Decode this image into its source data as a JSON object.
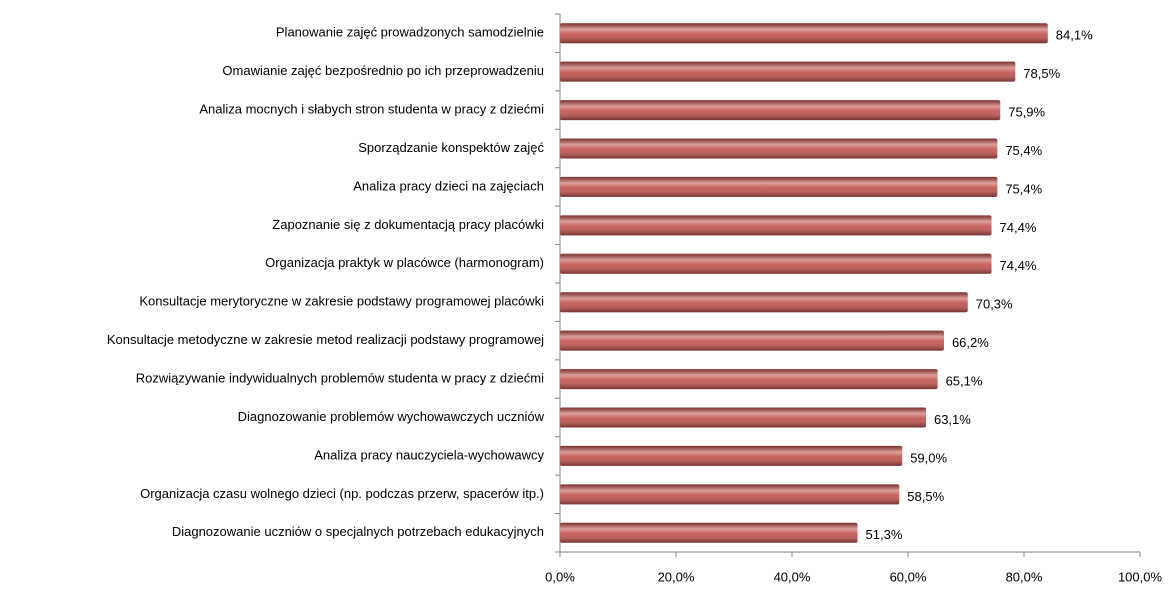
{
  "chart_data": {
    "type": "bar",
    "orientation": "horizontal",
    "categories": [
      "Planowanie zajęć prowadzonych samodzielnie",
      "Omawianie zajęć bezpośrednio po ich przeprowadzeniu",
      "Analiza mocnych i słabych stron studenta w pracy z dziećmi",
      "Sporządzanie konspektów zajęć",
      "Analiza pracy dzieci na zajęciach",
      "Zapoznanie się z dokumentacją pracy placówki",
      "Organizacja praktyk w placówce (harmonogram)",
      "Konsultacje merytoryczne w zakresie podstawy programowej placówki",
      "Konsultacje metodyczne w zakresie metod realizacji podstawy programowej",
      "Rozwiązywanie indywidualnych problemów studenta w pracy z dziećmi",
      "Diagnozowanie problemów wychowawczych uczniów",
      "Analiza pracy nauczyciela-wychowawcy",
      "Organizacja czasu wolnego dzieci (np. podczas przerw, spacerów itp.)",
      "Diagnozowanie uczniów o specjalnych potrzebach edukacyjnych"
    ],
    "values": [
      84.1,
      78.5,
      75.9,
      75.4,
      75.4,
      74.4,
      74.4,
      70.3,
      66.2,
      65.1,
      63.1,
      59.0,
      58.5,
      51.3
    ],
    "value_labels": [
      "84,1%",
      "78,5%",
      "75,9%",
      "75,4%",
      "75,4%",
      "74,4%",
      "74,4%",
      "70,3%",
      "66,2%",
      "65,1%",
      "63,1%",
      "59,0%",
      "58,5%",
      "51,3%"
    ],
    "color": "#c0504d",
    "xlim": [
      0,
      100
    ],
    "xticks": [
      {
        "value": 0,
        "label": "0,0%"
      },
      {
        "value": 20,
        "label": "20,0%"
      },
      {
        "value": 40,
        "label": "40,0%"
      },
      {
        "value": 60,
        "label": "60,0%"
      },
      {
        "value": 80,
        "label": "80,0%"
      },
      {
        "value": 100,
        "label": "100,0%"
      }
    ],
    "grid": false
  }
}
